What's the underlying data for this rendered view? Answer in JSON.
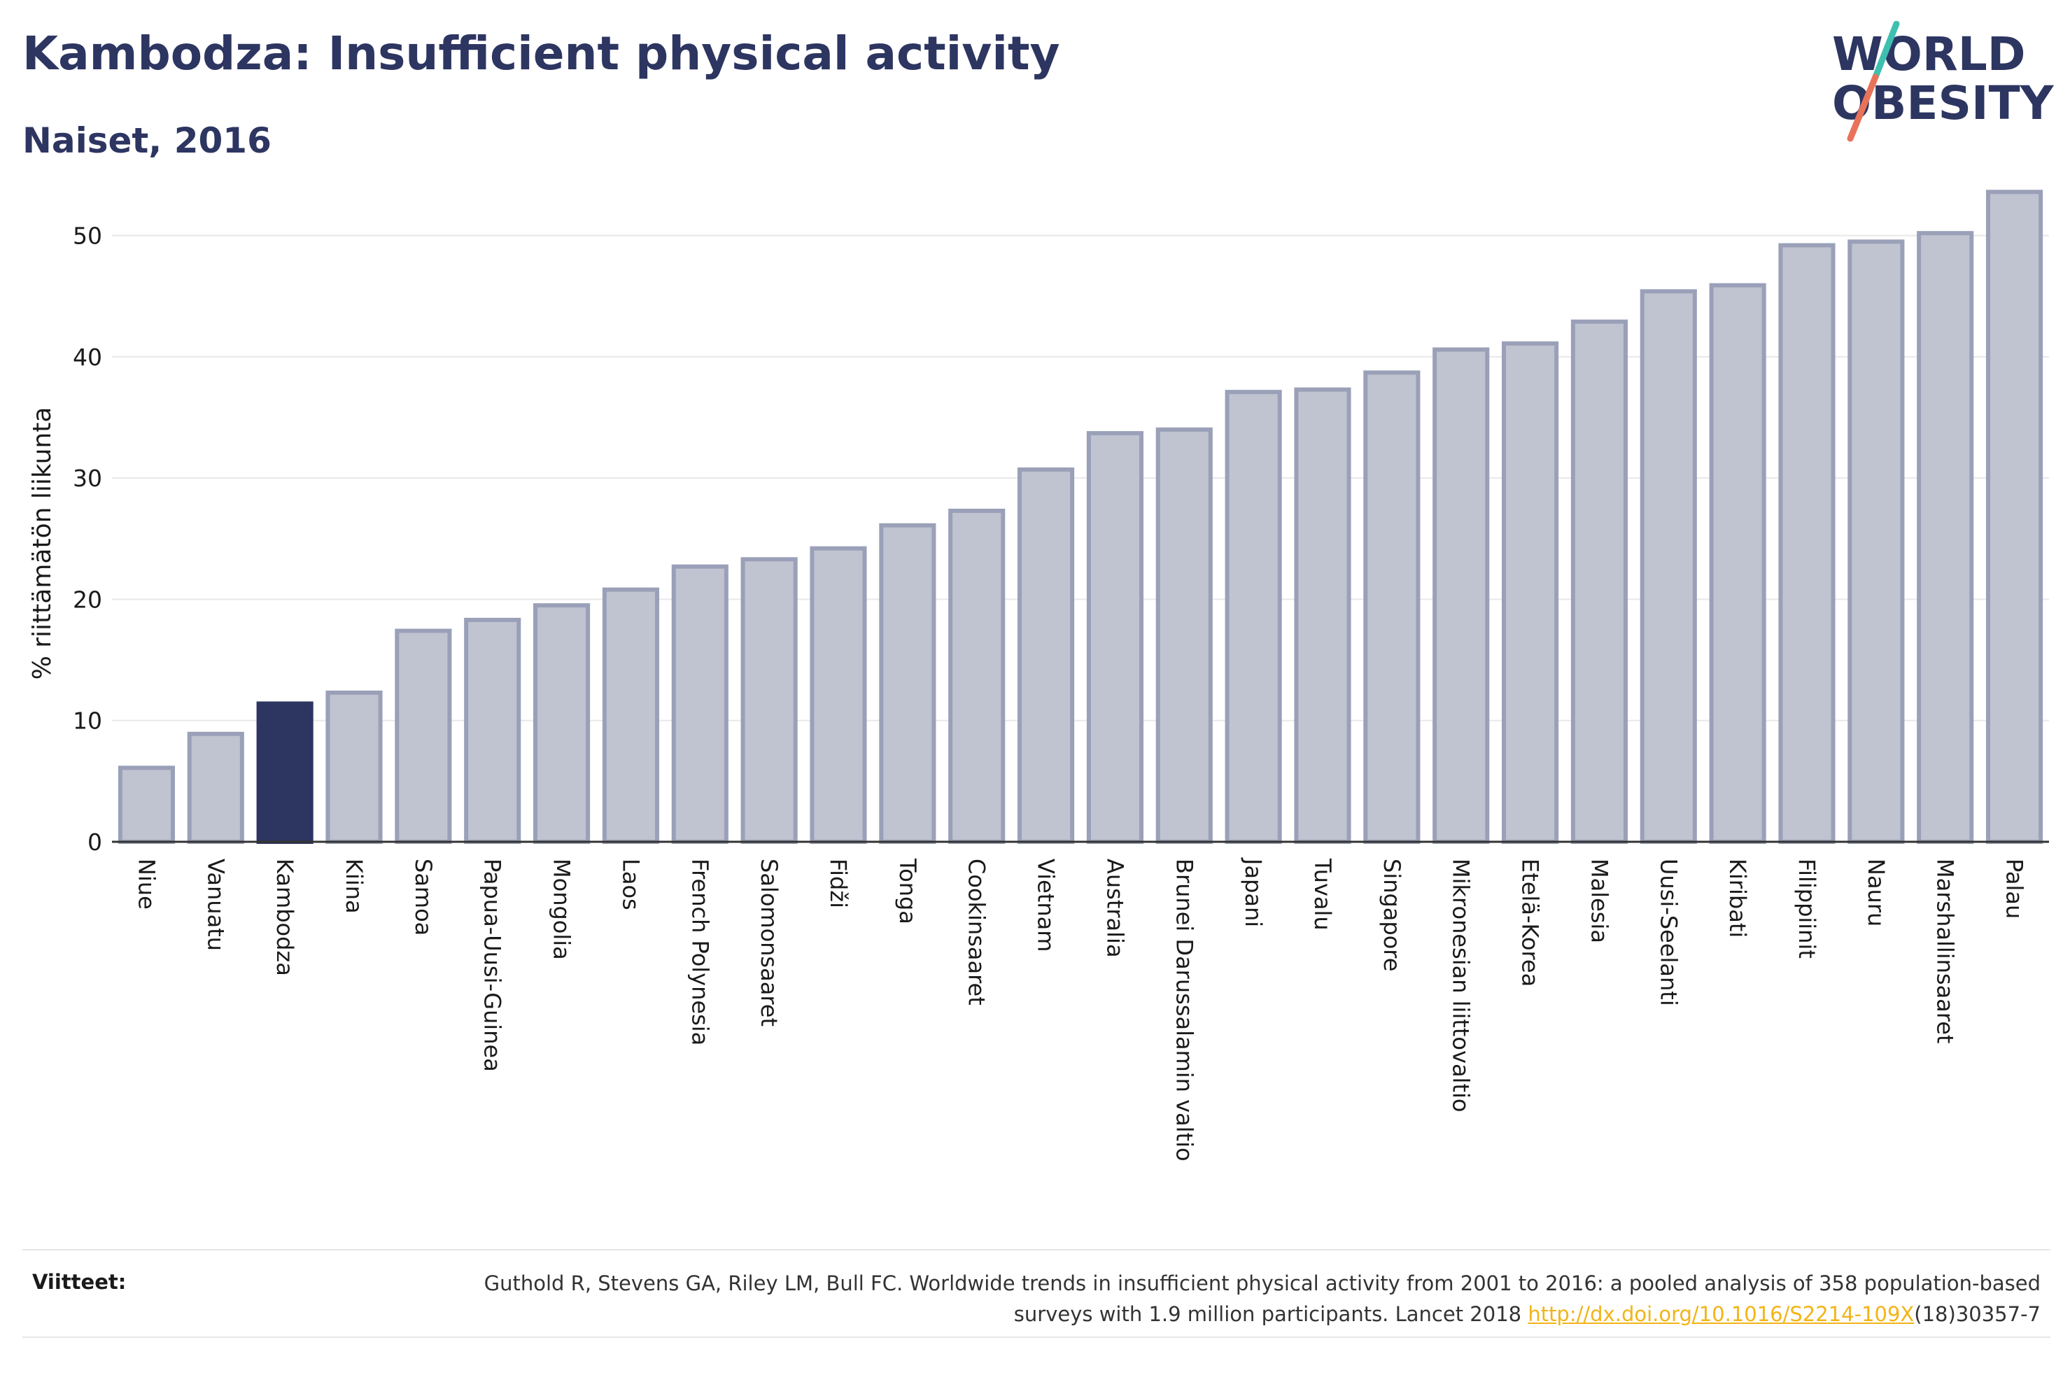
{
  "header": {
    "title": "Kambodza: Insufficient physical activity",
    "subtitle": "Naiset, 2016"
  },
  "logo": {
    "line1": "WORLD",
    "line2": "OBESITY",
    "slash_colors": [
      "#3fbfb0",
      "#e8735a"
    ]
  },
  "chart_data": {
    "type": "bar",
    "title": "Kambodza: Insufficient physical activity",
    "subtitle": "Naiset, 2016",
    "xlabel": "",
    "ylabel": "% riittämätön liikunta",
    "ylim": [
      0,
      55
    ],
    "yticks": [
      0,
      10,
      20,
      30,
      40,
      50
    ],
    "grid": true,
    "highlight": "Kambodza",
    "colors": {
      "bar": "#c0c3d0",
      "bar_edge": "#9aa0b8",
      "highlight": "#2d3561"
    },
    "categories": [
      "Niue",
      "Vanuatu",
      "Kambodza",
      "Kiina",
      "Samoa",
      "Papua-Uusi-Guinea",
      "Mongolia",
      "Laos",
      "French Polynesia",
      "Salomonsaaret",
      "Fidži",
      "Tonga",
      "Cookinsaaret",
      "Vietnam",
      "Australia",
      "Brunei Darussalamin valtio",
      "Japani",
      "Tuvalu",
      "Singapore",
      "Mikronesian liittovaltio",
      "Etelä-Korea",
      "Malesia",
      "Uusi-Seelanti",
      "Kiribati",
      "Filippiinit",
      "Nauru",
      "Marshallinsaaret",
      "Palau"
    ],
    "values": [
      6.1,
      8.9,
      11.4,
      12.3,
      17.4,
      18.3,
      19.5,
      20.8,
      22.7,
      23.3,
      24.2,
      26.1,
      27.3,
      30.7,
      33.7,
      34.0,
      37.1,
      37.3,
      38.7,
      40.6,
      41.1,
      42.9,
      45.4,
      45.9,
      49.2,
      49.5,
      50.2,
      53.6
    ]
  },
  "footer": {
    "references_label": "Viitteet:",
    "reference_text_1": "Guthold R, Stevens GA, Riley LM, Bull FC. Worldwide trends in insufficient physical activity from 2001 to 2016: a pooled analysis of 358 population-based surveys with 1.9 million participants. Lancet 2018 ",
    "reference_link": "http://dx.doi.org/10.1016/S2214-109X",
    "reference_text_2": "(18)30357-7"
  }
}
